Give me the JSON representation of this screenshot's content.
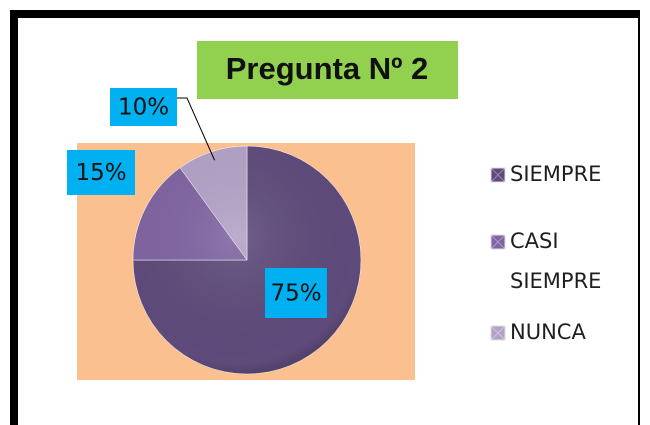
{
  "chart_data": {
    "type": "pie",
    "title": "Pregunta Nº 2",
    "categories": [
      "SIEMPRE",
      "CASI SIEMPRE",
      "NUNCA"
    ],
    "values": [
      75,
      15,
      10
    ],
    "value_labels": [
      "75%",
      "15%",
      "10%"
    ],
    "colors": [
      "#5f4b7b",
      "#8064a2",
      "#b3a2c7"
    ],
    "legend": "right"
  }
}
